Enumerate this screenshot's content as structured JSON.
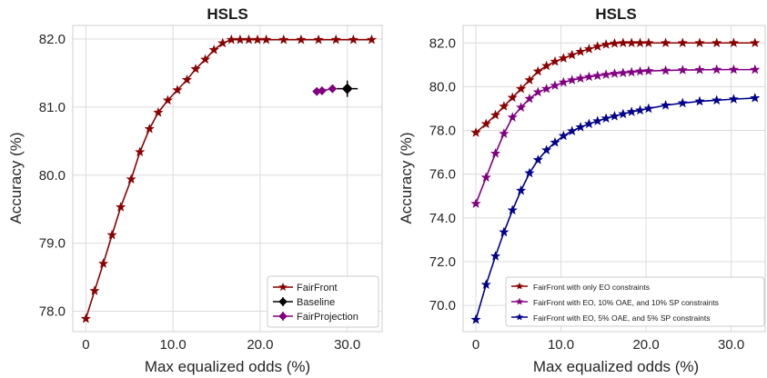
{
  "chart_data": [
    {
      "type": "line",
      "title": "HSLS",
      "xlabel": "Max equalized odds (%)",
      "ylabel": "Accuracy (%)",
      "xlim": [
        -1.5,
        34
      ],
      "ylim": [
        77.7,
        82.2
      ],
      "xticks": [
        0,
        10,
        20,
        30
      ],
      "xtick_labels": [
        "0",
        "10.0",
        "20.0",
        "30.0"
      ],
      "yticks": [
        78,
        79,
        80,
        81,
        82
      ],
      "ytick_labels": [
        "78.0",
        "79.0",
        "80.0",
        "81.0",
        "82.0"
      ],
      "grid": true,
      "legend_position": "lower-right",
      "series": [
        {
          "name": "FairFront",
          "color": "#8b0000",
          "marker": "star",
          "x": [
            0,
            1,
            2,
            3,
            4,
            5.2,
            6.2,
            7.3,
            8.3,
            9.4,
            10.5,
            11.6,
            12.6,
            13.7,
            14.7,
            15.7,
            16.7,
            17.7,
            18.7,
            19.7,
            20.7,
            22.7,
            24.7,
            26.7,
            28.7,
            30.7,
            32.8
          ],
          "y": [
            77.89,
            78.3,
            78.7,
            79.12,
            79.53,
            79.94,
            80.34,
            80.68,
            80.92,
            81.1,
            81.25,
            81.4,
            81.56,
            81.7,
            81.84,
            81.94,
            81.99,
            81.99,
            81.99,
            81.99,
            81.99,
            81.99,
            81.99,
            81.99,
            81.99,
            81.99,
            81.99
          ]
        },
        {
          "name": "Baseline",
          "color": "#000000",
          "marker": "diamond",
          "x": [
            30.0
          ],
          "y": [
            81.27
          ],
          "xerr": 1.2,
          "yerr": 0.12
        },
        {
          "name": "FairProjection",
          "color": "#800080",
          "marker": "diamond",
          "x": [
            26.5,
            27.1,
            28.3
          ],
          "y": [
            81.23,
            81.24,
            81.27
          ],
          "xerr": 0.4,
          "yerr": 0.03
        }
      ]
    },
    {
      "type": "line",
      "title": "HSLS",
      "xlabel": "Max equalized odds (%)",
      "ylabel": "Accuracy (%)",
      "xlim": [
        -1.5,
        34
      ],
      "ylim": [
        68.8,
        82.8
      ],
      "xticks": [
        0,
        10,
        20,
        30
      ],
      "xtick_labels": [
        "0",
        "10.0",
        "20.0",
        "30.0"
      ],
      "yticks": [
        70,
        72,
        74,
        76,
        78,
        80,
        82
      ],
      "ytick_labels": [
        "70.0",
        "72.0",
        "74.0",
        "76.0",
        "78.0",
        "80.0",
        "82.0"
      ],
      "grid": true,
      "legend_position": "lower-right",
      "series": [
        {
          "name": "FairFront with only EO constraints",
          "color": "#8b0000",
          "marker": "star",
          "x": [
            0,
            1.2,
            2.3,
            3.3,
            4.3,
            5.3,
            6.3,
            7.3,
            8.3,
            9.3,
            10.3,
            11.3,
            12.3,
            13.3,
            14.3,
            15.3,
            16.3,
            17.3,
            18.3,
            19.3,
            20.3,
            22.3,
            24.3,
            26.3,
            28.3,
            30.3,
            32.8
          ],
          "y": [
            77.9,
            78.3,
            78.7,
            79.1,
            79.5,
            79.9,
            80.3,
            80.7,
            80.95,
            81.15,
            81.3,
            81.45,
            81.6,
            81.72,
            81.84,
            81.93,
            81.98,
            82.0,
            82.0,
            82.0,
            82.0,
            82.0,
            82.0,
            82.0,
            82.0,
            82.0,
            82.0
          ]
        },
        {
          "name": "FairFront with EO, 10% OAE, and 10% SP constraints",
          "color": "#800080",
          "marker": "star",
          "x": [
            0,
            1.2,
            2.3,
            3.3,
            4.3,
            5.3,
            6.3,
            7.3,
            8.3,
            9.3,
            10.3,
            11.3,
            12.3,
            13.3,
            14.3,
            15.3,
            16.3,
            17.3,
            18.3,
            19.3,
            20.3,
            22.3,
            24.3,
            26.3,
            28.3,
            30.3,
            32.8
          ],
          "y": [
            74.65,
            75.85,
            76.95,
            77.85,
            78.6,
            79.05,
            79.45,
            79.75,
            79.9,
            80.05,
            80.2,
            80.3,
            80.38,
            80.45,
            80.5,
            80.55,
            80.6,
            80.63,
            80.66,
            80.7,
            80.72,
            80.74,
            80.76,
            80.77,
            80.78,
            80.78,
            80.78
          ]
        },
        {
          "name": "FairFront with EO, 5% OAE, and 5% SP constraints",
          "color": "#00008b",
          "marker": "star",
          "x": [
            0,
            1.2,
            2.3,
            3.3,
            4.3,
            5.3,
            6.3,
            7.3,
            8.3,
            9.3,
            10.3,
            11.3,
            12.3,
            13.3,
            14.3,
            15.3,
            16.3,
            17.3,
            18.3,
            19.3,
            20.3,
            22.3,
            24.3,
            26.3,
            28.3,
            30.3,
            32.8
          ],
          "y": [
            69.35,
            70.95,
            72.25,
            73.35,
            74.35,
            75.25,
            76.05,
            76.65,
            77.1,
            77.45,
            77.75,
            77.97,
            78.15,
            78.3,
            78.43,
            78.55,
            78.65,
            78.75,
            78.85,
            78.92,
            79.0,
            79.15,
            79.25,
            79.33,
            79.38,
            79.43,
            79.48
          ]
        }
      ]
    }
  ]
}
